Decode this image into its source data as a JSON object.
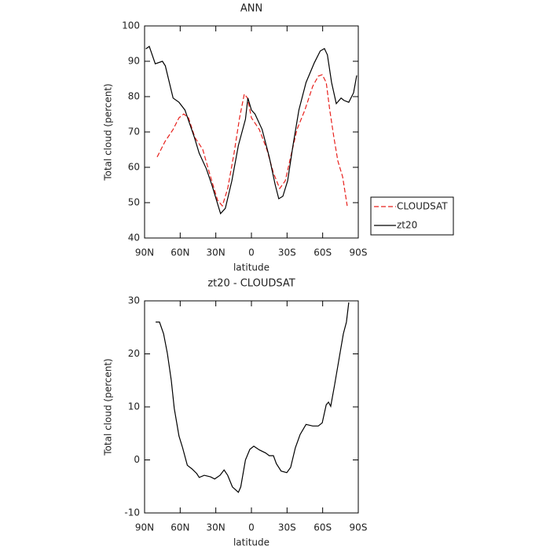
{
  "chart_data": [
    {
      "type": "line",
      "title": "ANN",
      "xlabel": "latitude",
      "ylabel": "Total cloud (percent)",
      "xlim": [
        90,
        -90
      ],
      "xticks": [
        {
          "value": 90,
          "label": "90N"
        },
        {
          "value": 60,
          "label": "60N"
        },
        {
          "value": 30,
          "label": "30N"
        },
        0,
        {
          "value": -30,
          "label": "30S"
        },
        {
          "value": -60,
          "label": "60S"
        },
        {
          "value": -90,
          "label": "90S"
        }
      ],
      "ylim": [
        40,
        100
      ],
      "yticks": [
        40,
        50,
        60,
        70,
        80,
        90,
        100
      ],
      "legend": "right",
      "series": [
        {
          "name": "CLOUDSAT",
          "color": "#e8201c",
          "style": "dashed",
          "x": [
            79.4,
            72.8,
            66,
            61,
            57,
            53,
            47.6,
            41,
            34.4,
            28.5,
            24.5,
            20,
            14.6,
            10,
            6,
            3.3,
            0,
            -6.6,
            -13,
            -18.5,
            -23.8,
            -28.5,
            -33,
            -38.4,
            -45,
            -51.6,
            -56.3,
            -59.6,
            -63,
            -66,
            -69.5,
            -72.8,
            -76.8,
            -80.7
          ],
          "values": [
            62.9,
            67.3,
            70.7,
            74,
            75.1,
            74,
            68.4,
            65.1,
            57.3,
            50.7,
            49.1,
            54,
            64,
            74,
            80.7,
            79.6,
            74,
            70.7,
            65.1,
            58.4,
            54,
            56.2,
            62.9,
            70.7,
            76.2,
            82.9,
            85.8,
            86.2,
            84,
            76.2,
            68.4,
            61.8,
            57.3,
            49.1
          ]
        },
        {
          "name": "zt20",
          "color": "#000000",
          "style": "solid",
          "x": [
            89,
            86,
            81,
            75,
            72.5,
            66,
            61,
            56,
            53,
            48,
            44,
            38,
            33,
            28,
            26,
            22,
            16.5,
            11,
            5,
            3,
            0,
            -3,
            -9,
            -15,
            -20,
            -23,
            -26.5,
            -30.5,
            -35,
            -40,
            -46,
            -53,
            -58,
            -61.5,
            -64,
            -67.5,
            -71.5,
            -75.5,
            -78,
            -82,
            -86,
            -88.7
          ],
          "values": [
            93.5,
            94.2,
            89.3,
            90,
            88.7,
            79.6,
            78.4,
            76.2,
            73.3,
            68.4,
            64,
            59.6,
            54.7,
            49.1,
            46.9,
            48.4,
            56.2,
            66.2,
            73.6,
            79.6,
            76.2,
            75.1,
            70.7,
            62.9,
            55.1,
            51.1,
            51.8,
            56.2,
            66.2,
            76.2,
            84,
            89.6,
            92.9,
            93.6,
            91.8,
            84,
            78,
            79.6,
            78.9,
            78.4,
            81.1,
            86
          ]
        }
      ]
    },
    {
      "type": "line",
      "title": "zt20 - CLOUDSAT",
      "xlabel": "latitude",
      "ylabel": "Total cloud (percent)",
      "xlim": [
        90,
        -90
      ],
      "xticks": [
        {
          "value": 90,
          "label": "90N"
        },
        {
          "value": 60,
          "label": "60N"
        },
        {
          "value": 30,
          "label": "30N"
        },
        0,
        {
          "value": -30,
          "label": "30S"
        },
        {
          "value": -60,
          "label": "60S"
        },
        {
          "value": -90,
          "label": "90S"
        }
      ],
      "ylim": [
        -10,
        30
      ],
      "yticks": [
        -10,
        0,
        10,
        20,
        30
      ],
      "series": [
        {
          "color": "#000000",
          "style": "solid",
          "x": [
            80.7,
            77.4,
            74,
            70.8,
            67.5,
            65,
            61,
            58,
            54,
            50,
            46,
            44,
            39.7,
            34.4,
            31,
            26.5,
            23,
            20,
            16,
            11,
            9,
            5,
            1.3,
            -2,
            -6.6,
            -12,
            -15,
            -18.5,
            -21,
            -25,
            -29.8,
            -33,
            -37,
            -41,
            -46,
            -51.6,
            -56.3,
            -59.6,
            -63,
            -64.9,
            -66.8,
            -70,
            -74,
            -77.4,
            -80,
            -82
          ],
          "values": [
            26,
            26,
            23.8,
            20.1,
            15,
            9.7,
            4.5,
            2.3,
            -1,
            -1.7,
            -2.6,
            -3.3,
            -2.9,
            -3.2,
            -3.6,
            -2.9,
            -1.9,
            -2.9,
            -5.1,
            -6.1,
            -5.1,
            0,
            2,
            2.6,
            1.9,
            1.3,
            0.8,
            0.8,
            -0.7,
            -2.1,
            -2.4,
            -1.4,
            2.3,
            4.8,
            6.7,
            6.4,
            6.4,
            7,
            10.4,
            10.9,
            10.1,
            14.1,
            19.3,
            23.8,
            26,
            29.7
          ]
        }
      ]
    }
  ]
}
